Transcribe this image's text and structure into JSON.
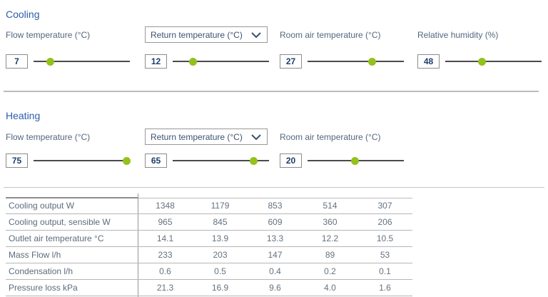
{
  "colors": {
    "accent_green": "#94c11c",
    "heading_blue": "#2d5da9",
    "label_blue_gray": "#54677e"
  },
  "cooling": {
    "title": "Cooling",
    "controls": [
      {
        "label": "Flow temperature (°C)",
        "value": "7",
        "dropdown": false,
        "position_pct": 17
      },
      {
        "label": "Return temperature (°C)",
        "value": "12",
        "dropdown": true,
        "position_pct": 21
      },
      {
        "label": "Room air temperature (°C)",
        "value": "27",
        "dropdown": false,
        "position_pct": 67
      },
      {
        "label": "Relative humidity (%)",
        "value": "48",
        "dropdown": false,
        "position_pct": 38
      }
    ]
  },
  "heating": {
    "title": "Heating",
    "controls": [
      {
        "label": "Flow temperature (°C)",
        "value": "75",
        "dropdown": false,
        "position_pct": 96
      },
      {
        "label": "Return temperature (°C)",
        "value": "65",
        "dropdown": true,
        "position_pct": 84
      },
      {
        "label": "Room air temperature (°C)",
        "value": "20",
        "dropdown": false,
        "position_pct": 49
      }
    ]
  },
  "results_table": {
    "rows": [
      {
        "label": "Cooling output W",
        "values": [
          "1348",
          "1179",
          "853",
          "514",
          "307"
        ]
      },
      {
        "label": "Cooling output, sensible W",
        "values": [
          "965",
          "845",
          "609",
          "360",
          "206"
        ]
      },
      {
        "label": "Outlet air temperature °C",
        "values": [
          "14.1",
          "13.9",
          "13.3",
          "12.2",
          "10.5"
        ]
      },
      {
        "label": "Mass Flow l/h",
        "values": [
          "233",
          "203",
          "147",
          "89",
          "53"
        ]
      },
      {
        "label": "Condensation l/h",
        "values": [
          "0.6",
          "0.5",
          "0.4",
          "0.2",
          "0.1"
        ]
      },
      {
        "label": "Pressure loss kPa",
        "values": [
          "21.3",
          "16.9",
          "9.6",
          "4.0",
          "1.6"
        ]
      }
    ]
  }
}
